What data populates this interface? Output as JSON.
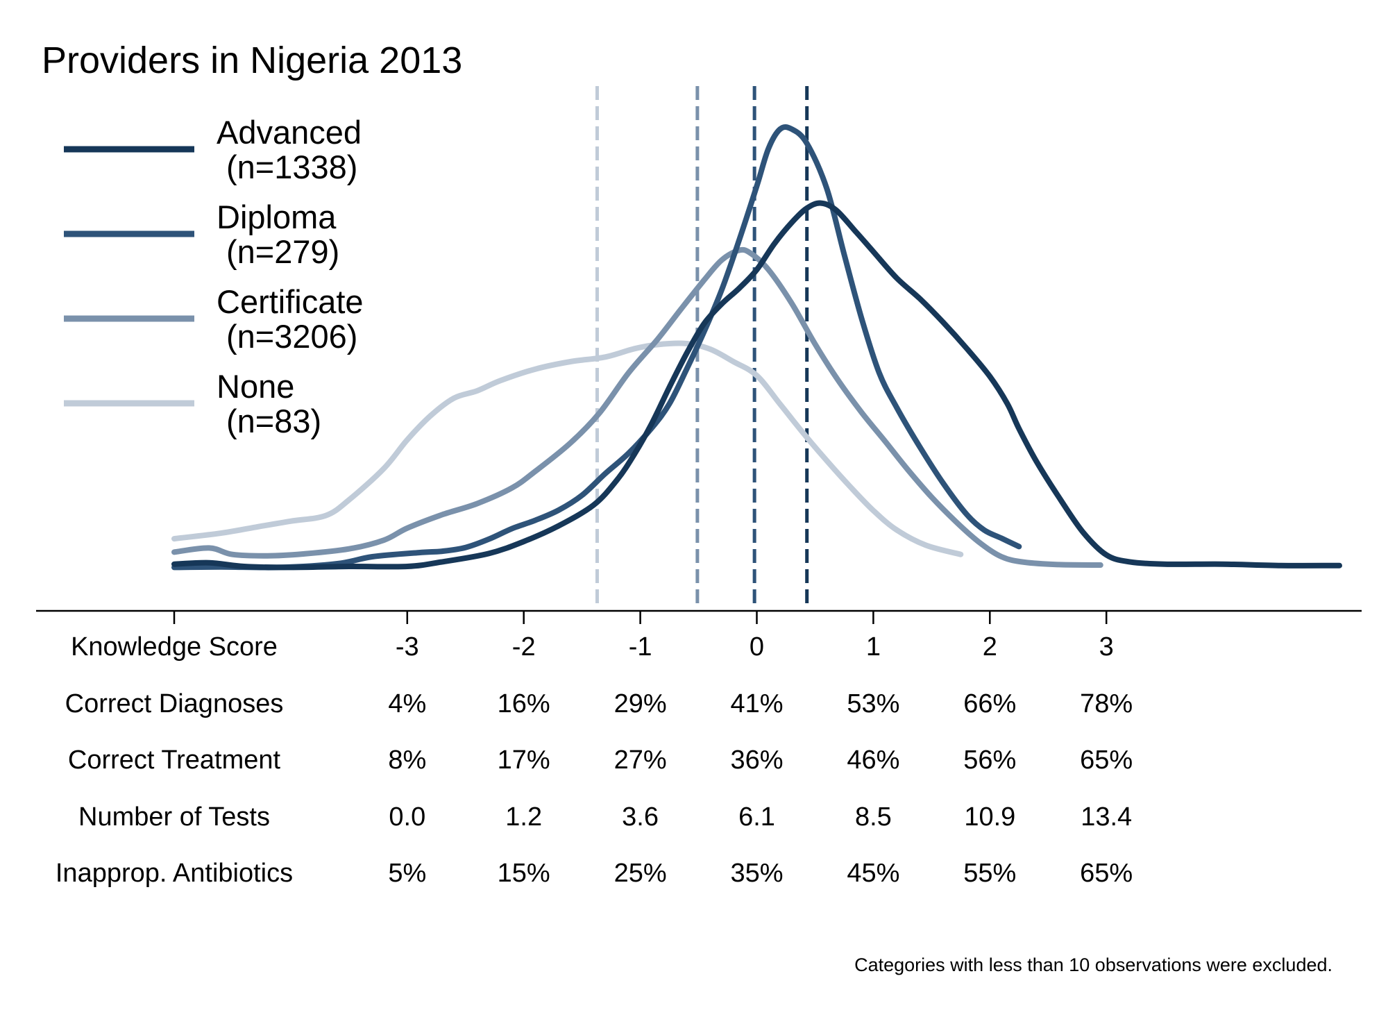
{
  "chart_data": {
    "type": "line",
    "title": "Providers in Nigeria 2013",
    "xlim": [
      -5,
      5
    ],
    "ylim": [
      0,
      1
    ],
    "y_axis_shown": false,
    "grid": false,
    "legend_position": "top-left",
    "series": [
      {
        "name": "Advanced",
        "n_label": "(n=1338)",
        "color": "#163758",
        "mean": 0.43,
        "points": [
          [
            -5,
            0.059
          ],
          [
            -4.7,
            0.062
          ],
          [
            -4.4,
            0.054
          ],
          [
            -4.0,
            0.052
          ],
          [
            -3.5,
            0.054
          ],
          [
            -3.0,
            0.054
          ],
          [
            -2.7,
            0.064
          ],
          [
            -2.3,
            0.082
          ],
          [
            -2.0,
            0.108
          ],
          [
            -1.7,
            0.142
          ],
          [
            -1.4,
            0.187
          ],
          [
            -1.2,
            0.241
          ],
          [
            -1.05,
            0.297
          ],
          [
            -0.9,
            0.364
          ],
          [
            -0.75,
            0.442
          ],
          [
            -0.6,
            0.516
          ],
          [
            -0.45,
            0.58
          ],
          [
            -0.3,
            0.622
          ],
          [
            -0.15,
            0.656
          ],
          [
            0.0,
            0.696
          ],
          [
            0.15,
            0.752
          ],
          [
            0.3,
            0.798
          ],
          [
            0.43,
            0.829
          ],
          [
            0.55,
            0.84
          ],
          [
            0.68,
            0.825
          ],
          [
            0.85,
            0.778
          ],
          [
            1.0,
            0.735
          ],
          [
            1.2,
            0.678
          ],
          [
            1.4,
            0.633
          ],
          [
            1.6,
            0.582
          ],
          [
            1.8,
            0.526
          ],
          [
            2.0,
            0.465
          ],
          [
            2.15,
            0.406
          ],
          [
            2.25,
            0.352
          ],
          [
            2.4,
            0.281
          ],
          [
            2.6,
            0.201
          ],
          [
            2.8,
            0.128
          ],
          [
            3.0,
            0.079
          ],
          [
            3.2,
            0.064
          ],
          [
            3.5,
            0.059
          ],
          [
            4.0,
            0.059
          ],
          [
            4.5,
            0.056
          ],
          [
            5.0,
            0.056
          ]
        ]
      },
      {
        "name": "Diploma",
        "n_label": "(n=279)",
        "color": "#2e5379",
        "mean": -0.02,
        "points": [
          [
            -5,
            0.052
          ],
          [
            -4.6,
            0.053
          ],
          [
            -4.1,
            0.052
          ],
          [
            -3.6,
            0.06
          ],
          [
            -3.3,
            0.075
          ],
          [
            -2.9,
            0.084
          ],
          [
            -2.7,
            0.087
          ],
          [
            -2.5,
            0.095
          ],
          [
            -2.3,
            0.113
          ],
          [
            -2.1,
            0.136
          ],
          [
            -1.9,
            0.154
          ],
          [
            -1.7,
            0.176
          ],
          [
            -1.5,
            0.208
          ],
          [
            -1.3,
            0.255
          ],
          [
            -1.1,
            0.299
          ],
          [
            -0.9,
            0.354
          ],
          [
            -0.75,
            0.406
          ],
          [
            -0.6,
            0.482
          ],
          [
            -0.45,
            0.563
          ],
          [
            -0.3,
            0.653
          ],
          [
            -0.15,
            0.761
          ],
          [
            0.0,
            0.877
          ],
          [
            0.1,
            0.958
          ],
          [
            0.2,
            1.0
          ],
          [
            0.3,
            1.0
          ],
          [
            0.43,
            0.969
          ],
          [
            0.6,
            0.872
          ],
          [
            0.75,
            0.729
          ],
          [
            0.9,
            0.59
          ],
          [
            1.05,
            0.473
          ],
          [
            1.2,
            0.398
          ],
          [
            1.4,
            0.312
          ],
          [
            1.6,
            0.234
          ],
          [
            1.8,
            0.167
          ],
          [
            1.95,
            0.133
          ],
          [
            2.1,
            0.115
          ],
          [
            2.25,
            0.097
          ]
        ]
      },
      {
        "name": "Certificate",
        "n_label": "(n=3206)",
        "color": "#7a91ab",
        "mean": -0.51,
        "points": [
          [
            -5,
            0.085
          ],
          [
            -4.7,
            0.094
          ],
          [
            -4.5,
            0.08
          ],
          [
            -4.2,
            0.077
          ],
          [
            -3.9,
            0.081
          ],
          [
            -3.5,
            0.092
          ],
          [
            -3.2,
            0.111
          ],
          [
            -3.0,
            0.137
          ],
          [
            -2.7,
            0.166
          ],
          [
            -2.4,
            0.19
          ],
          [
            -2.1,
            0.224
          ],
          [
            -1.9,
            0.26
          ],
          [
            -1.6,
            0.321
          ],
          [
            -1.35,
            0.386
          ],
          [
            -1.1,
            0.473
          ],
          [
            -0.85,
            0.546
          ],
          [
            -0.65,
            0.611
          ],
          [
            -0.45,
            0.674
          ],
          [
            -0.3,
            0.717
          ],
          [
            -0.15,
            0.738
          ],
          [
            -0.05,
            0.731
          ],
          [
            0.1,
            0.696
          ],
          [
            0.3,
            0.623
          ],
          [
            0.5,
            0.535
          ],
          [
            0.7,
            0.456
          ],
          [
            0.9,
            0.387
          ],
          [
            1.1,
            0.325
          ],
          [
            1.3,
            0.262
          ],
          [
            1.5,
            0.204
          ],
          [
            1.7,
            0.153
          ],
          [
            1.9,
            0.108
          ],
          [
            2.1,
            0.075
          ],
          [
            2.3,
            0.063
          ],
          [
            2.6,
            0.058
          ],
          [
            2.95,
            0.057
          ]
        ]
      },
      {
        "name": "None",
        "n_label": "(n=83)",
        "color": "#c0cbd8",
        "mean": -1.37,
        "points": [
          [
            -5,
            0.114
          ],
          [
            -4.6,
            0.126
          ],
          [
            -4.3,
            0.139
          ],
          [
            -4.0,
            0.152
          ],
          [
            -3.7,
            0.164
          ],
          [
            -3.5,
            0.198
          ],
          [
            -3.2,
            0.266
          ],
          [
            -3.0,
            0.328
          ],
          [
            -2.8,
            0.38
          ],
          [
            -2.6,
            0.418
          ],
          [
            -2.4,
            0.434
          ],
          [
            -2.2,
            0.456
          ],
          [
            -1.9,
            0.481
          ],
          [
            -1.6,
            0.497
          ],
          [
            -1.3,
            0.507
          ],
          [
            -1.05,
            0.525
          ],
          [
            -0.85,
            0.534
          ],
          [
            -0.6,
            0.536
          ],
          [
            -0.4,
            0.524
          ],
          [
            -0.2,
            0.497
          ],
          [
            0.0,
            0.467
          ],
          [
            0.2,
            0.405
          ],
          [
            0.4,
            0.342
          ],
          [
            0.6,
            0.283
          ],
          [
            0.8,
            0.227
          ],
          [
            1.0,
            0.175
          ],
          [
            1.2,
            0.133
          ],
          [
            1.45,
            0.1
          ],
          [
            1.75,
            0.08
          ]
        ]
      }
    ],
    "x_ticks": [
      -5,
      -3,
      -2,
      -1,
      0,
      1,
      2,
      3
    ],
    "table": {
      "row_labels": [
        "Knowledge Score",
        "Correct Diagnoses",
        "Correct Treatment",
        "Number of Tests",
        "Inapprop. Antibiotics"
      ],
      "columns": [
        "-3",
        "-2",
        "-1",
        "0",
        "1",
        "2",
        "3"
      ],
      "values": [
        [
          "-3",
          "-2",
          "-1",
          "0",
          "1",
          "2",
          "3"
        ],
        [
          "4%",
          "16%",
          "29%",
          "41%",
          "53%",
          "66%",
          "78%"
        ],
        [
          "8%",
          "17%",
          "27%",
          "36%",
          "46%",
          "56%",
          "65%"
        ],
        [
          "0.0",
          "1.2",
          "3.6",
          "6.1",
          "8.5",
          "10.9",
          "13.4"
        ],
        [
          "5%",
          "15%",
          "25%",
          "35%",
          "45%",
          "55%",
          "65%"
        ]
      ]
    },
    "footnote": "Categories with less than 10 observations were excluded."
  }
}
